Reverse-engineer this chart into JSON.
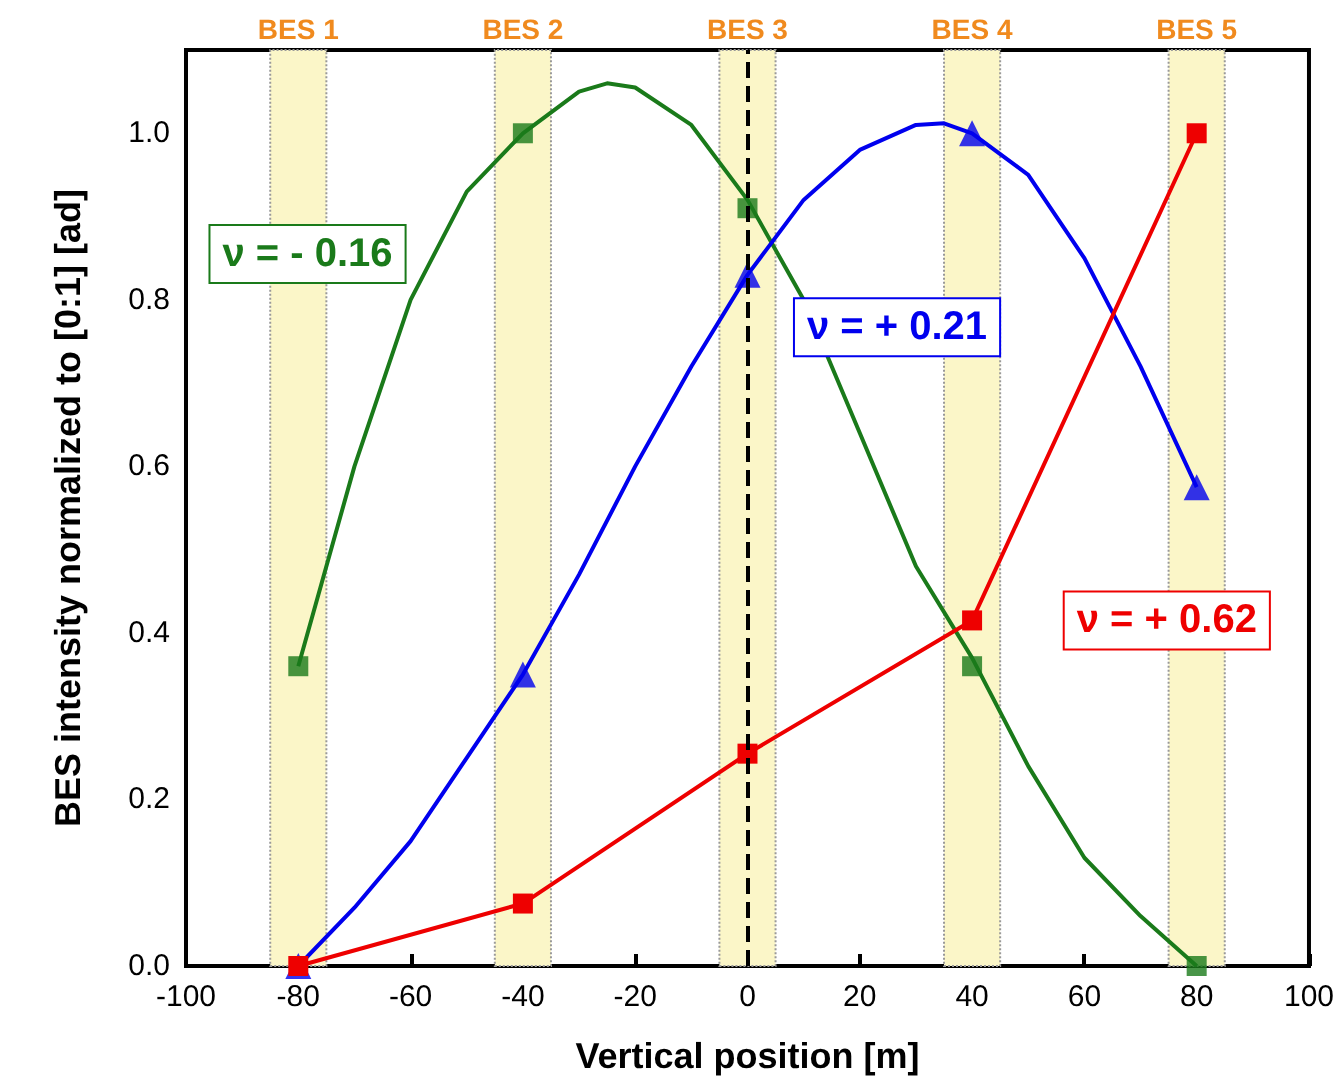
{
  "chart_data": {
    "type": "scatter",
    "xlabel": "Vertical position [m]",
    "ylabel": "BES intensity normalized to [0:1] [ad]",
    "xlim": [
      -100,
      100
    ],
    "xticks": [
      -100,
      -80,
      -60,
      -40,
      -20,
      0,
      20,
      40,
      60,
      80,
      100
    ],
    "ylim": [
      0,
      1.1
    ],
    "yticks": [
      {
        "value": 0,
        "label": "0.0"
      },
      0.2,
      0.4,
      0.6,
      0.8,
      {
        "value": 1,
        "label": "1.0"
      }
    ],
    "grid": false,
    "legend": false,
    "series": [
      {
        "type": "line",
        "color": "#1a7a1a",
        "marker": "none",
        "x": [
          -80,
          -70,
          -60,
          -50,
          -40,
          -30,
          -25,
          -20,
          -10,
          0,
          10,
          20,
          30,
          40,
          50,
          60,
          70,
          80
        ],
        "values": [
          0.36,
          0.6,
          0.8,
          0.93,
          1.0,
          1.05,
          1.06,
          1.055,
          1.01,
          0.92,
          0.8,
          0.64,
          0.48,
          0.37,
          0.24,
          0.13,
          0.06,
          0.0
        ]
      },
      {
        "name": "ν = - 0.16",
        "color": "#1a7a1a",
        "marker": "square",
        "x": [
          -80,
          -40,
          0,
          40,
          80
        ],
        "values": [
          0.36,
          1.0,
          0.91,
          0.36,
          0.0
        ]
      },
      {
        "type": "line",
        "color": "#0000ee",
        "marker": "none",
        "x": [
          -80,
          -70,
          -60,
          -50,
          -40,
          -30,
          -20,
          -10,
          0,
          10,
          20,
          30,
          35,
          40,
          50,
          60,
          70,
          80
        ],
        "values": [
          0.0,
          0.07,
          0.15,
          0.25,
          0.35,
          0.47,
          0.6,
          0.72,
          0.83,
          0.92,
          0.98,
          1.01,
          1.012,
          1.0,
          0.95,
          0.85,
          0.72,
          0.575
        ]
      },
      {
        "name": "ν = + 0.21",
        "color": "#0000ee",
        "marker": "triangle",
        "x": [
          -80,
          -40,
          0,
          40,
          80
        ],
        "values": [
          0.0,
          0.35,
          0.83,
          1.0,
          0.575
        ]
      },
      {
        "type": "line",
        "name": "ν = + 0.62",
        "color": "#ee0000",
        "marker": "square",
        "x": [
          -80,
          -40,
          0,
          40,
          80
        ],
        "values": [
          0.0,
          0.075,
          0.255,
          0.415,
          1.0
        ]
      }
    ],
    "ref_lines": [
      {
        "axis": "x",
        "value": 0,
        "color": "#000000",
        "line_style": "dashed"
      }
    ],
    "bands": [
      {
        "axis": "x",
        "from": -85,
        "to": -75,
        "color": "#fbf6c8",
        "label": "BES 1"
      },
      {
        "axis": "x",
        "from": -45,
        "to": -35,
        "color": "#fbf6c8",
        "label": "BES 2"
      },
      {
        "axis": "x",
        "from": -5,
        "to": 5,
        "color": "#fbf6c8",
        "label": "BES 3"
      },
      {
        "axis": "x",
        "from": 35,
        "to": 45,
        "color": "#fbf6c8",
        "label": "BES 4"
      },
      {
        "axis": "x",
        "from": 75,
        "to": 85,
        "color": "#fbf6c8",
        "label": "BES 5"
      }
    ]
  }
}
